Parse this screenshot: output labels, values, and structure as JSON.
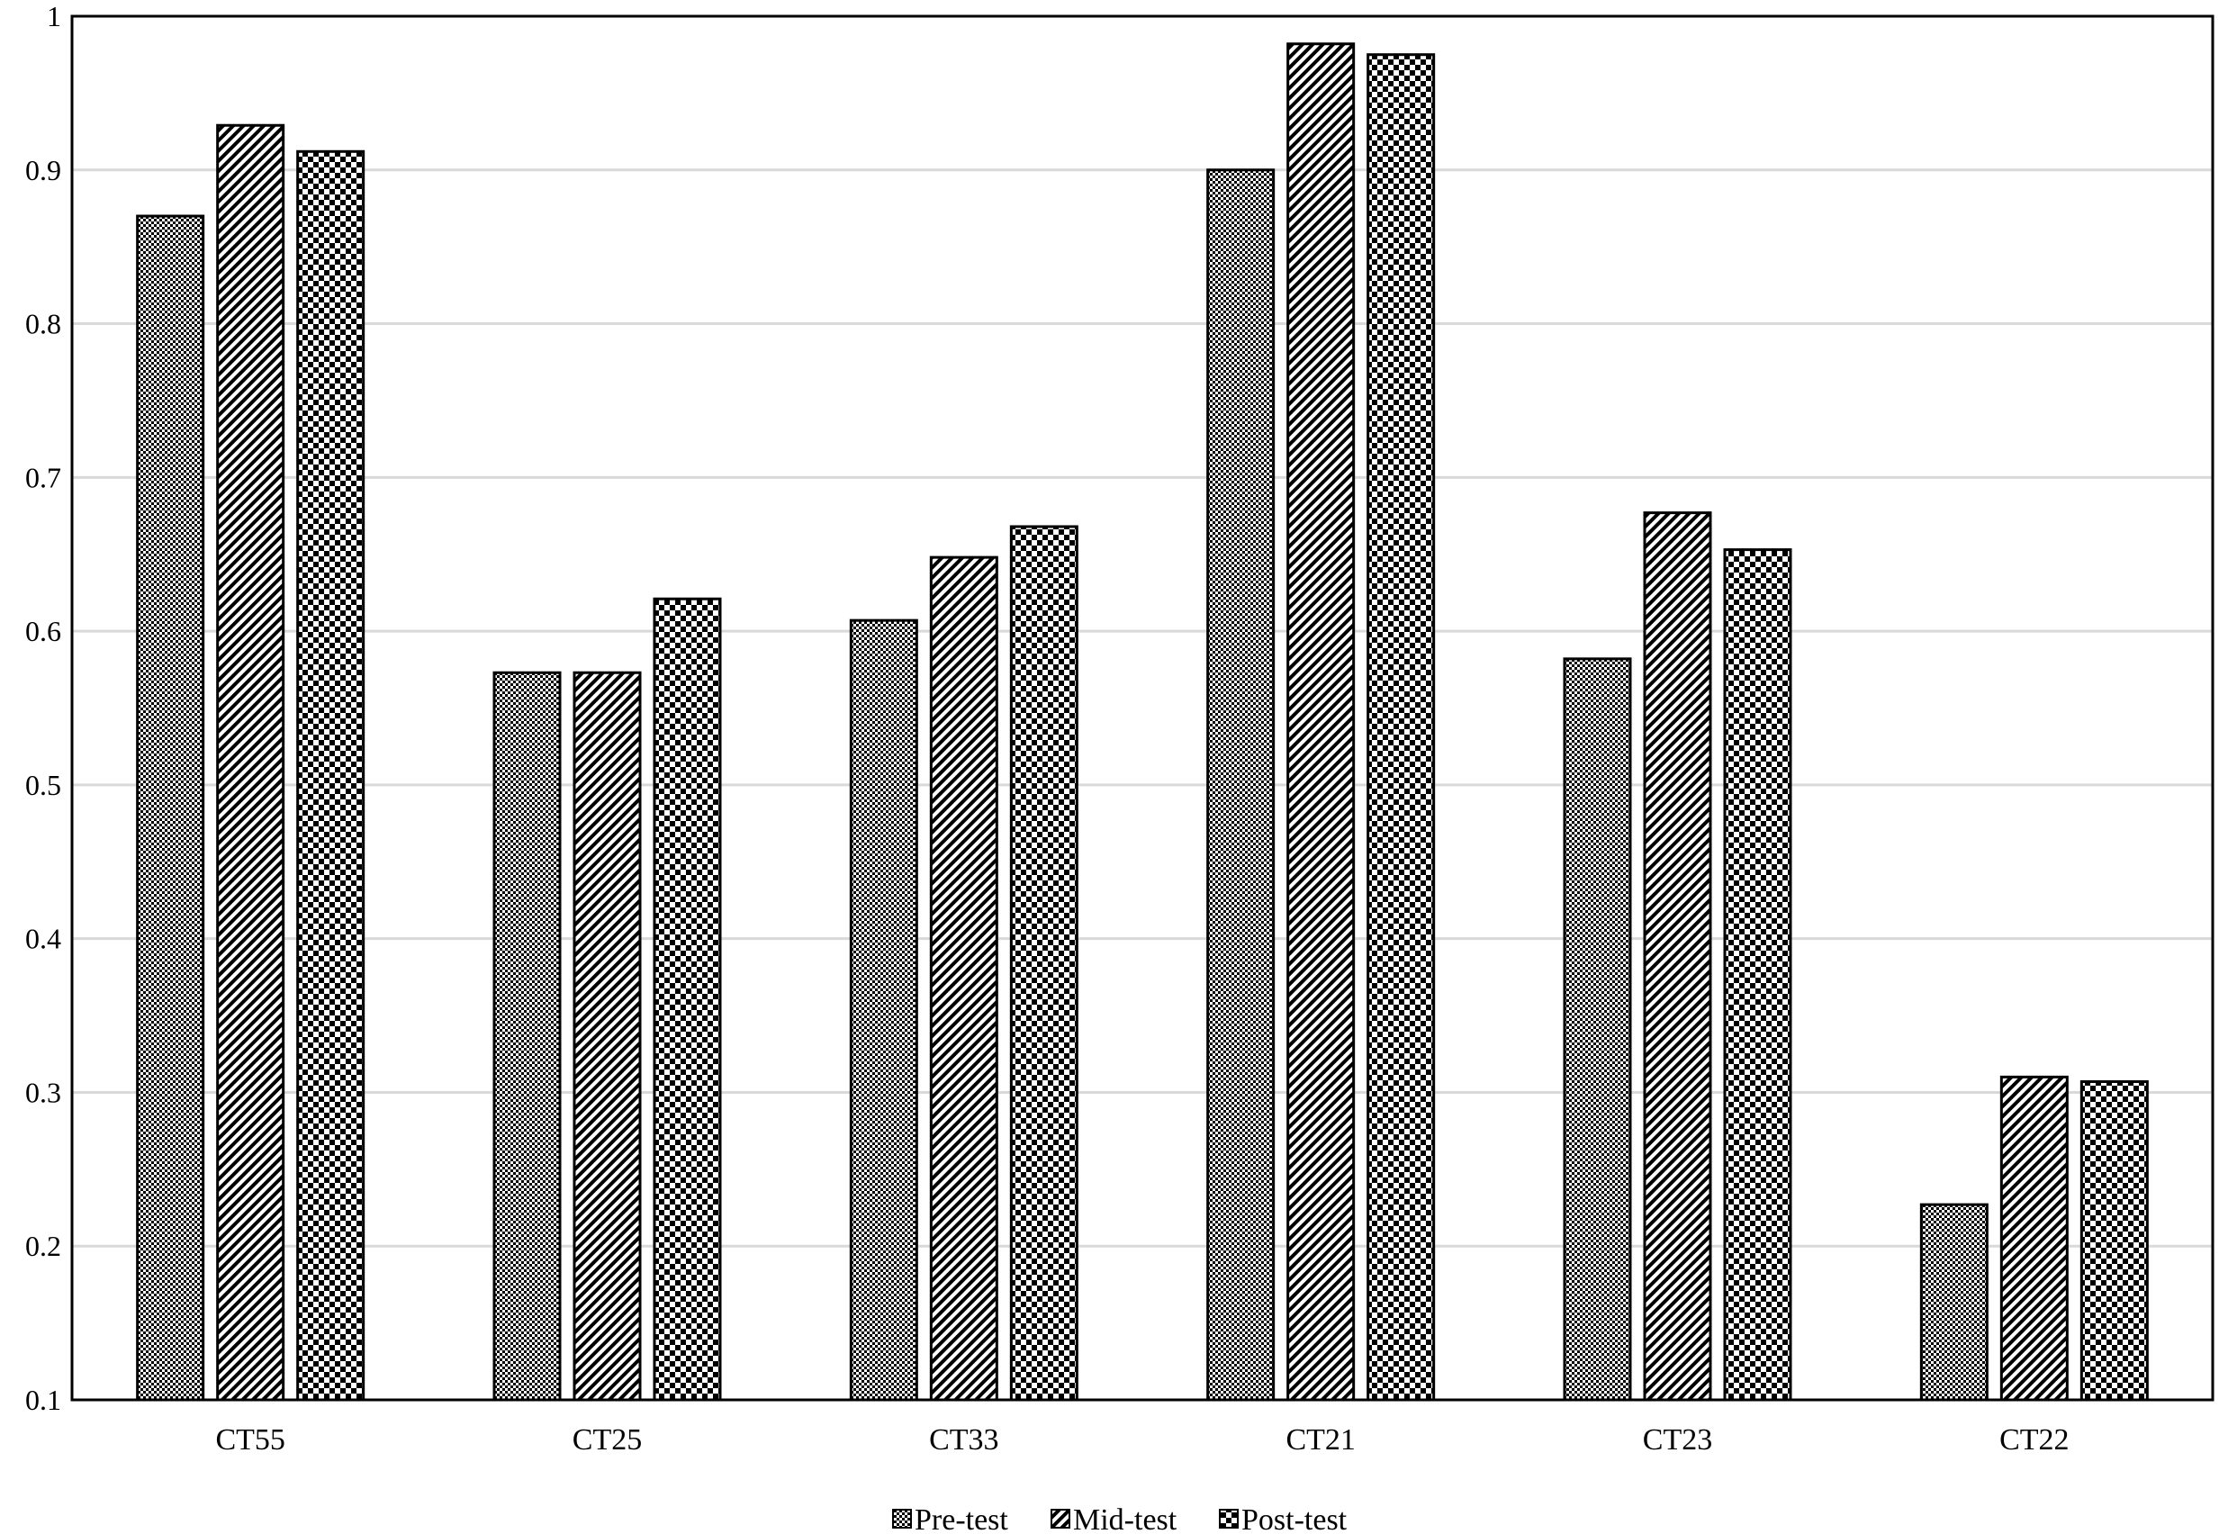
{
  "chart_data": {
    "type": "bar",
    "categories": [
      "CT55",
      "CT25",
      "CT33",
      "CT21",
      "CT23",
      "CT22"
    ],
    "series": [
      {
        "name": "Pre-test",
        "values": [
          0.87,
          0.573,
          0.607,
          0.9,
          0.582,
          0.227
        ],
        "pattern": "fine-check"
      },
      {
        "name": "Mid-test",
        "values": [
          0.929,
          0.573,
          0.648,
          0.982,
          0.677,
          0.31
        ],
        "pattern": "diagonal"
      },
      {
        "name": "Post-test",
        "values": [
          0.912,
          0.621,
          0.668,
          0.975,
          0.653,
          0.307
        ],
        "pattern": "coarse-check"
      }
    ],
    "ylim": [
      0.1,
      1
    ],
    "yticks": [
      0.1,
      0.2,
      0.3,
      0.4,
      0.5,
      0.6,
      0.7,
      0.8,
      0.9,
      1
    ],
    "ytick_labels": [
      "0.1",
      "0.2",
      "0.3",
      "0.4",
      "0.5",
      "0.6",
      "0.7",
      "0.8",
      "0.9",
      "1"
    ],
    "title": "",
    "xlabel": "",
    "ylabel": "",
    "grid": true,
    "legend_position": "bottom-center",
    "colors": {
      "bar_fill": "#ffffff",
      "pattern": "#000000",
      "grid": "#d9d9d9",
      "axis": "#000000"
    }
  }
}
